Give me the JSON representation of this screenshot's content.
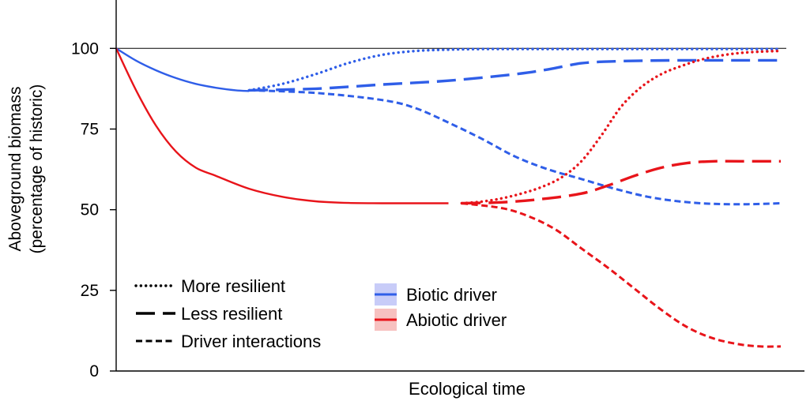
{
  "chart_data": {
    "type": "line",
    "title": "",
    "xlabel": "Ecological time",
    "ylabel_line1": "Aboveground biomass",
    "ylabel_line2": "(percentage of historic)",
    "ylim": [
      0,
      115
    ],
    "xlim": [
      0,
      100
    ],
    "yticks": [
      0,
      25,
      50,
      75,
      100
    ],
    "ytick_labels": [
      "0",
      "25",
      "50",
      "75",
      "100"
    ],
    "x_ticks_shown": false,
    "reference_line_y": 100,
    "colors": {
      "biotic": "#2f5ee8",
      "abiotic": "#e8141a",
      "axis": "#000000"
    },
    "series": [
      {
        "key": "biotic-base",
        "driver": "biotic",
        "style": "solid",
        "x": [
          0,
          3,
          6,
          9,
          12,
          15,
          18,
          20
        ],
        "y": [
          100,
          96.2,
          93.2,
          90.8,
          89,
          87.8,
          87,
          86.8
        ]
      },
      {
        "key": "biotic-more-resilient",
        "driver": "biotic",
        "style": "dotted",
        "x": [
          20,
          25,
          30,
          35,
          40,
          45,
          50,
          55,
          60,
          70,
          80,
          90,
          100
        ],
        "y": [
          87,
          89,
          92,
          95.5,
          98,
          99.2,
          99.6,
          99.8,
          99.8,
          99.8,
          99.8,
          99.8,
          99.8
        ]
      },
      {
        "key": "biotic-less-resilient",
        "driver": "biotic",
        "style": "dashed",
        "x": [
          20,
          30,
          40,
          50,
          60,
          65,
          70,
          75,
          80,
          85,
          90,
          95,
          100
        ],
        "y": [
          87,
          87.5,
          88.8,
          90,
          92,
          93.5,
          95.4,
          96,
          96.2,
          96.3,
          96.3,
          96.3,
          96.3
        ]
      },
      {
        "key": "biotic-driver-interactions",
        "driver": "biotic",
        "style": "short-dash",
        "x": [
          20,
          30,
          40,
          45,
          50,
          55,
          60,
          65,
          70,
          75,
          80,
          85,
          90,
          95,
          100
        ],
        "y": [
          87,
          86.2,
          84,
          81.5,
          77,
          72,
          66.5,
          62.5,
          59.5,
          56.5,
          54,
          52.5,
          51.8,
          51.7,
          52
        ]
      },
      {
        "key": "abiotic-base",
        "driver": "abiotic",
        "style": "solid",
        "x": [
          0,
          3,
          6,
          9,
          12,
          15,
          20,
          25,
          30,
          35,
          40,
          45,
          50
        ],
        "y": [
          100,
          87,
          76,
          68,
          63,
          60.5,
          56.5,
          54,
          52.6,
          52.1,
          52,
          52,
          52
        ]
      },
      {
        "key": "abiotic-more-resilient",
        "driver": "abiotic",
        "style": "dotted",
        "x": [
          52,
          55,
          58,
          61,
          64,
          67,
          70,
          73,
          76,
          79,
          82,
          85,
          88,
          91,
          94,
          97,
          100
        ],
        "y": [
          52,
          52.5,
          53.5,
          55,
          57,
          60,
          65,
          73,
          82,
          88,
          92,
          94.5,
          96.5,
          97.8,
          98.6,
          99,
          99.2
        ]
      },
      {
        "key": "abiotic-less-resilient",
        "driver": "abiotic",
        "style": "dashed",
        "x": [
          52,
          58,
          64,
          70,
          74,
          78,
          82,
          86,
          90,
          94,
          100
        ],
        "y": [
          52,
          52.3,
          53.3,
          55,
          57.5,
          60.5,
          63,
          64.5,
          65,
          65,
          65
        ]
      },
      {
        "key": "abiotic-driver-interactions",
        "driver": "abiotic",
        "style": "short-dash",
        "x": [
          52,
          58,
          62,
          66,
          70,
          74,
          78,
          82,
          86,
          90,
          94,
          97,
          100
        ],
        "y": [
          52,
          50.5,
          48,
          44,
          38,
          32,
          25.5,
          19,
          13.5,
          10,
          8.2,
          7.6,
          7.6
        ]
      }
    ],
    "legend_styles": [
      {
        "label": "More resilient",
        "style": "dotted"
      },
      {
        "label": "Less resilient",
        "style": "dashed"
      },
      {
        "label": "Driver interactions",
        "style": "short-dash"
      }
    ],
    "legend_drivers": [
      {
        "label": "Biotic driver",
        "color": "#2f5ee8",
        "swatch": "#c8ccf8"
      },
      {
        "label": "Abiotic driver",
        "color": "#e8141a",
        "swatch": "#f7c1c0"
      }
    ],
    "legend_placement": "bottom-left"
  }
}
